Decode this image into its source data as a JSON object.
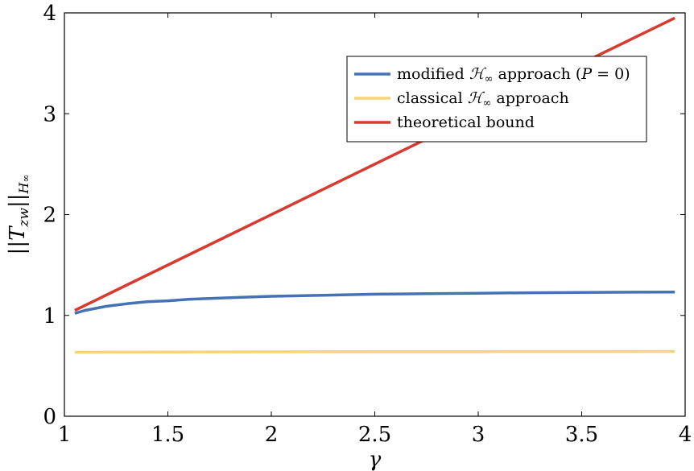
{
  "chart_data": {
    "type": "line",
    "xlabel": "γ",
    "ylabel": "||T_zw||_H∞",
    "ylabel_parts": {
      "open": "||",
      "T": "T",
      "sub": "zw",
      "close": "||",
      "H": "H",
      "inf": "∞"
    },
    "xlim": [
      1,
      4
    ],
    "ylim": [
      0,
      4
    ],
    "x_ticks": [
      1,
      1.5,
      2,
      2.5,
      3,
      3.5,
      4
    ],
    "x_tick_labels": [
      "1",
      "1.5",
      "2",
      "2.5",
      "3",
      "3.5",
      "4"
    ],
    "y_ticks": [
      0,
      1,
      2,
      3,
      4
    ],
    "y_tick_labels": [
      "0",
      "1",
      "2",
      "3",
      "4"
    ],
    "grid": false,
    "legend_position": "top-right",
    "series": [
      {
        "name": "modified ℋ∞ approach (P = 0)",
        "color": "#4472b4",
        "x": [
          1.05,
          1.1,
          1.2,
          1.3,
          1.4,
          1.5,
          1.6,
          1.8,
          2.0,
          2.25,
          2.5,
          2.75,
          3.0,
          3.25,
          3.5,
          3.75,
          3.95
        ],
        "y": [
          1.02,
          1.05,
          1.09,
          1.115,
          1.135,
          1.145,
          1.16,
          1.175,
          1.19,
          1.2,
          1.21,
          1.215,
          1.22,
          1.225,
          1.228,
          1.23,
          1.232
        ]
      },
      {
        "name": "classical ℋ∞ approach",
        "color": "#f7d37b",
        "x": [
          1.05,
          1.5,
          2.0,
          2.5,
          3.0,
          3.5,
          3.95
        ],
        "y": [
          0.635,
          0.637,
          0.639,
          0.64,
          0.641,
          0.642,
          0.643
        ]
      },
      {
        "name": "theoretical bound",
        "color": "#d83a2f",
        "x": [
          1.05,
          3.95
        ],
        "y": [
          1.05,
          3.95
        ]
      }
    ],
    "legend_labels": [
      {
        "before": "modified ",
        "script": "ℋ",
        "inf": "∞",
        "after": " approach (",
        "P": "P",
        "eq": " = 0)"
      },
      {
        "before": "classical ",
        "script": "ℋ",
        "inf": "∞",
        "after": " approach"
      },
      {
        "before": "theoretical bound"
      }
    ]
  }
}
